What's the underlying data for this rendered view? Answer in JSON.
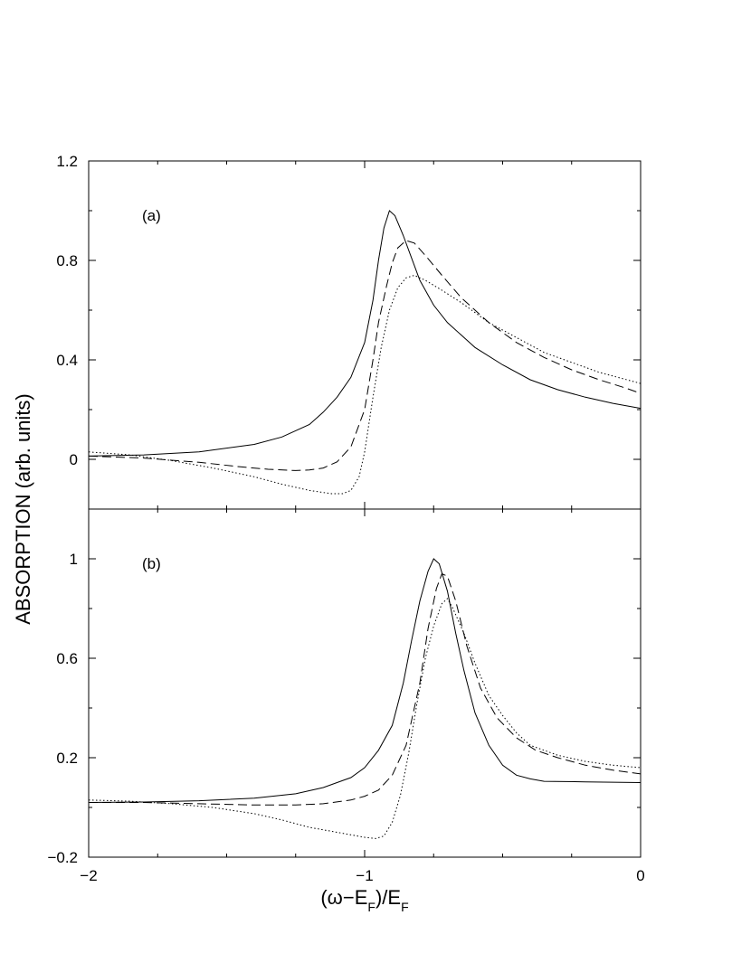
{
  "chart_data": {
    "type": "line",
    "ylabel": "ABSORPTION (arb. units)",
    "xlabel_main": "(ω−E",
    "xlabel_sub1": "F",
    "xlabel_mid": ")/E",
    "xlabel_sub2": "F",
    "xlim": [
      -2,
      0
    ],
    "x_ticks": [
      -2,
      -1,
      0
    ],
    "x_tick_labels": [
      "−2",
      "−1",
      "0"
    ],
    "panels": [
      {
        "label": "(a)",
        "ylim": [
          -0.2,
          1.2
        ],
        "y_ticks": [
          0,
          0.4,
          0.8,
          1.2
        ],
        "y_tick_labels": [
          "0",
          "0.4",
          "0.8",
          "1.2"
        ],
        "series": [
          {
            "style": "solid",
            "points": [
              [
                -2.0,
                0.013
              ],
              [
                -1.8,
                0.018
              ],
              [
                -1.6,
                0.03
              ],
              [
                -1.4,
                0.06
              ],
              [
                -1.3,
                0.09
              ],
              [
                -1.2,
                0.14
              ],
              [
                -1.15,
                0.19
              ],
              [
                -1.1,
                0.25
              ],
              [
                -1.05,
                0.33
              ],
              [
                -1.0,
                0.47
              ],
              [
                -0.97,
                0.64
              ],
              [
                -0.95,
                0.8
              ],
              [
                -0.93,
                0.93
              ],
              [
                -0.91,
                1.0
              ],
              [
                -0.89,
                0.98
              ],
              [
                -0.86,
                0.9
              ],
              [
                -0.83,
                0.81
              ],
              [
                -0.8,
                0.72
              ],
              [
                -0.75,
                0.62
              ],
              [
                -0.7,
                0.55
              ],
              [
                -0.6,
                0.45
              ],
              [
                -0.5,
                0.38
              ],
              [
                -0.4,
                0.32
              ],
              [
                -0.3,
                0.28
              ],
              [
                -0.2,
                0.25
              ],
              [
                -0.1,
                0.225
              ],
              [
                0.0,
                0.205
              ]
            ]
          },
          {
            "style": "dashed",
            "points": [
              [
                -2.0,
                0.013
              ],
              [
                -1.8,
                0.005
              ],
              [
                -1.6,
                -0.012
              ],
              [
                -1.45,
                -0.03
              ],
              [
                -1.35,
                -0.04
              ],
              [
                -1.25,
                -0.045
              ],
              [
                -1.2,
                -0.043
              ],
              [
                -1.15,
                -0.035
              ],
              [
                -1.1,
                -0.01
              ],
              [
                -1.05,
                0.05
              ],
              [
                -1.0,
                0.2
              ],
              [
                -0.97,
                0.4
              ],
              [
                -0.95,
                0.55
              ],
              [
                -0.92,
                0.7
              ],
              [
                -0.9,
                0.79
              ],
              [
                -0.88,
                0.85
              ],
              [
                -0.85,
                0.88
              ],
              [
                -0.82,
                0.87
              ],
              [
                -0.78,
                0.82
              ],
              [
                -0.72,
                0.74
              ],
              [
                -0.65,
                0.65
              ],
              [
                -0.55,
                0.55
              ],
              [
                -0.45,
                0.47
              ],
              [
                -0.35,
                0.41
              ],
              [
                -0.25,
                0.36
              ],
              [
                -0.15,
                0.32
              ],
              [
                -0.05,
                0.285
              ],
              [
                0.0,
                0.265
              ]
            ]
          },
          {
            "style": "dotted",
            "points": [
              [
                -2.0,
                0.03
              ],
              [
                -1.85,
                0.018
              ],
              [
                -1.7,
                -0.005
              ],
              [
                -1.55,
                -0.035
              ],
              [
                -1.4,
                -0.07
              ],
              [
                -1.3,
                -0.1
              ],
              [
                -1.2,
                -0.125
              ],
              [
                -1.12,
                -0.138
              ],
              [
                -1.08,
                -0.138
              ],
              [
                -1.05,
                -0.125
              ],
              [
                -1.02,
                -0.07
              ],
              [
                -1.0,
                0.03
              ],
              [
                -0.97,
                0.25
              ],
              [
                -0.94,
                0.45
              ],
              [
                -0.91,
                0.6
              ],
              [
                -0.88,
                0.69
              ],
              [
                -0.85,
                0.73
              ],
              [
                -0.82,
                0.74
              ],
              [
                -0.78,
                0.72
              ],
              [
                -0.72,
                0.68
              ],
              [
                -0.65,
                0.63
              ],
              [
                -0.55,
                0.55
              ],
              [
                -0.45,
                0.49
              ],
              [
                -0.35,
                0.43
              ],
              [
                -0.25,
                0.39
              ],
              [
                -0.15,
                0.35
              ],
              [
                -0.05,
                0.32
              ],
              [
                0.0,
                0.305
              ]
            ]
          }
        ]
      },
      {
        "label": "(b)",
        "ylim": [
          -0.2,
          1.2
        ],
        "y_ticks": [
          -0.2,
          0.2,
          0.6,
          1.0
        ],
        "y_tick_labels": [
          "−0.2",
          "0.2",
          "0.6",
          "1"
        ],
        "series": [
          {
            "style": "solid",
            "points": [
              [
                -2.0,
                0.02
              ],
              [
                -1.8,
                0.022
              ],
              [
                -1.6,
                0.027
              ],
              [
                -1.4,
                0.037
              ],
              [
                -1.25,
                0.055
              ],
              [
                -1.15,
                0.08
              ],
              [
                -1.05,
                0.12
              ],
              [
                -1.0,
                0.16
              ],
              [
                -0.95,
                0.23
              ],
              [
                -0.9,
                0.33
              ],
              [
                -0.86,
                0.5
              ],
              [
                -0.83,
                0.67
              ],
              [
                -0.8,
                0.83
              ],
              [
                -0.77,
                0.95
              ],
              [
                -0.75,
                1.0
              ],
              [
                -0.73,
                0.98
              ],
              [
                -0.7,
                0.87
              ],
              [
                -0.67,
                0.7
              ],
              [
                -0.64,
                0.55
              ],
              [
                -0.6,
                0.38
              ],
              [
                -0.55,
                0.25
              ],
              [
                -0.5,
                0.17
              ],
              [
                -0.45,
                0.13
              ],
              [
                -0.4,
                0.115
              ],
              [
                -0.35,
                0.105
              ],
              [
                -0.2,
                0.103
              ],
              [
                0.0,
                0.1
              ]
            ]
          },
          {
            "style": "dashed",
            "points": [
              [
                -2.0,
                0.02
              ],
              [
                -1.8,
                0.02
              ],
              [
                -1.6,
                0.015
              ],
              [
                -1.4,
                0.01
              ],
              [
                -1.25,
                0.01
              ],
              [
                -1.15,
                0.015
              ],
              [
                -1.05,
                0.03
              ],
              [
                -1.0,
                0.045
              ],
              [
                -0.95,
                0.07
              ],
              [
                -0.9,
                0.13
              ],
              [
                -0.85,
                0.25
              ],
              [
                -0.8,
                0.5
              ],
              [
                -0.77,
                0.72
              ],
              [
                -0.74,
                0.88
              ],
              [
                -0.72,
                0.94
              ],
              [
                -0.7,
                0.93
              ],
              [
                -0.67,
                0.83
              ],
              [
                -0.63,
                0.65
              ],
              [
                -0.58,
                0.48
              ],
              [
                -0.52,
                0.36
              ],
              [
                -0.45,
                0.28
              ],
              [
                -0.38,
                0.23
              ],
              [
                -0.3,
                0.2
              ],
              [
                -0.2,
                0.17
              ],
              [
                -0.1,
                0.15
              ],
              [
                0.0,
                0.135
              ]
            ]
          },
          {
            "style": "dotted",
            "points": [
              [
                -2.0,
                0.03
              ],
              [
                -1.85,
                0.025
              ],
              [
                -1.7,
                0.015
              ],
              [
                -1.55,
                0.0
              ],
              [
                -1.4,
                -0.025
              ],
              [
                -1.3,
                -0.05
              ],
              [
                -1.2,
                -0.08
              ],
              [
                -1.1,
                -0.1
              ],
              [
                -1.05,
                -0.11
              ],
              [
                -1.0,
                -0.12
              ],
              [
                -0.96,
                -0.125
              ],
              [
                -0.93,
                -0.115
              ],
              [
                -0.9,
                -0.06
              ],
              [
                -0.87,
                0.05
              ],
              [
                -0.84,
                0.22
              ],
              [
                -0.81,
                0.42
              ],
              [
                -0.78,
                0.6
              ],
              [
                -0.75,
                0.73
              ],
              [
                -0.72,
                0.82
              ],
              [
                -0.7,
                0.84
              ],
              [
                -0.68,
                0.8
              ],
              [
                -0.64,
                0.7
              ],
              [
                -0.6,
                0.58
              ],
              [
                -0.55,
                0.45
              ],
              [
                -0.5,
                0.37
              ],
              [
                -0.45,
                0.3
              ],
              [
                -0.4,
                0.25
              ],
              [
                -0.3,
                0.21
              ],
              [
                -0.2,
                0.185
              ],
              [
                -0.1,
                0.17
              ],
              [
                0.0,
                0.16
              ]
            ]
          }
        ]
      }
    ]
  }
}
